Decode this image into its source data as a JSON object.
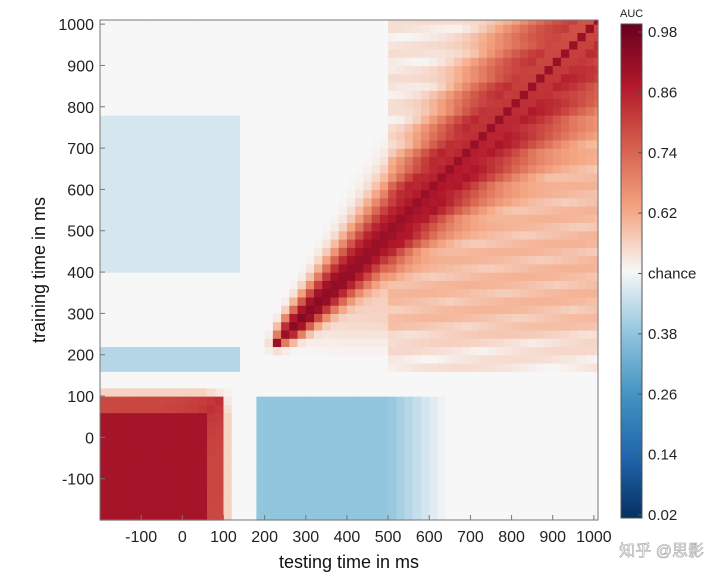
{
  "chart_data": {
    "type": "heatmap",
    "title": "",
    "xlabel": "testing time in ms",
    "ylabel": "training time in ms",
    "xlim": [
      -200,
      1010
    ],
    "ylim": [
      -200,
      1010
    ],
    "xticks": [
      -100,
      0,
      100,
      200,
      300,
      400,
      500,
      600,
      700,
      800,
      900,
      1000
    ],
    "yticks": [
      -100,
      0,
      100,
      200,
      300,
      400,
      500,
      600,
      700,
      800,
      900,
      1000
    ],
    "xtick_labels": [
      "-100",
      "0",
      "100",
      "200",
      "300",
      "400",
      "500",
      "600",
      "700",
      "800",
      "900",
      "1000"
    ],
    "ytick_labels": [
      "-100",
      "0",
      "100",
      "200",
      "300",
      "400",
      "500",
      "600",
      "700",
      "800",
      "900",
      "1000"
    ],
    "colorbar": {
      "title": "AUC",
      "range": [
        0.02,
        0.98
      ],
      "ticks": [
        0.02,
        0.14,
        0.26,
        0.38,
        0.5,
        0.62,
        0.74,
        0.86,
        0.98
      ],
      "tick_labels": [
        "0.02",
        "0.14",
        "0.26",
        "0.38",
        "chance",
        "0.62",
        "0.74",
        "0.86",
        "0.98"
      ],
      "colormap": "diverging blue-white-red"
    },
    "grid_resolution_ms": 20,
    "regions": [
      {
        "name": "early diagonal block",
        "train_range": [
          -200,
          120
        ],
        "test_range": [
          -200,
          120
        ],
        "approx_auc": 0.9
      },
      {
        "name": "post-stimulus diagonal peak",
        "train_range": [
          220,
          520
        ],
        "test_range": [
          220,
          520
        ],
        "approx_auc": 0.92
      },
      {
        "name": "late diagonal",
        "train_range": [
          520,
          1000
        ],
        "test_range": [
          520,
          1000
        ],
        "approx_auc": 0.94
      },
      {
        "name": "below-chance band",
        "train_range": [
          -200,
          100
        ],
        "test_range": [
          170,
          620
        ],
        "approx_auc": 0.38
      },
      {
        "name": "below-chance strip",
        "train_range": [
          160,
          220
        ],
        "test_range": [
          -200,
          120
        ],
        "approx_auc": 0.42
      },
      {
        "name": "below-chance upper-left",
        "train_range": [
          400,
          780
        ],
        "test_range": [
          -200,
          140
        ],
        "approx_auc": 0.46
      }
    ]
  },
  "watermark": "知乎 @思影"
}
